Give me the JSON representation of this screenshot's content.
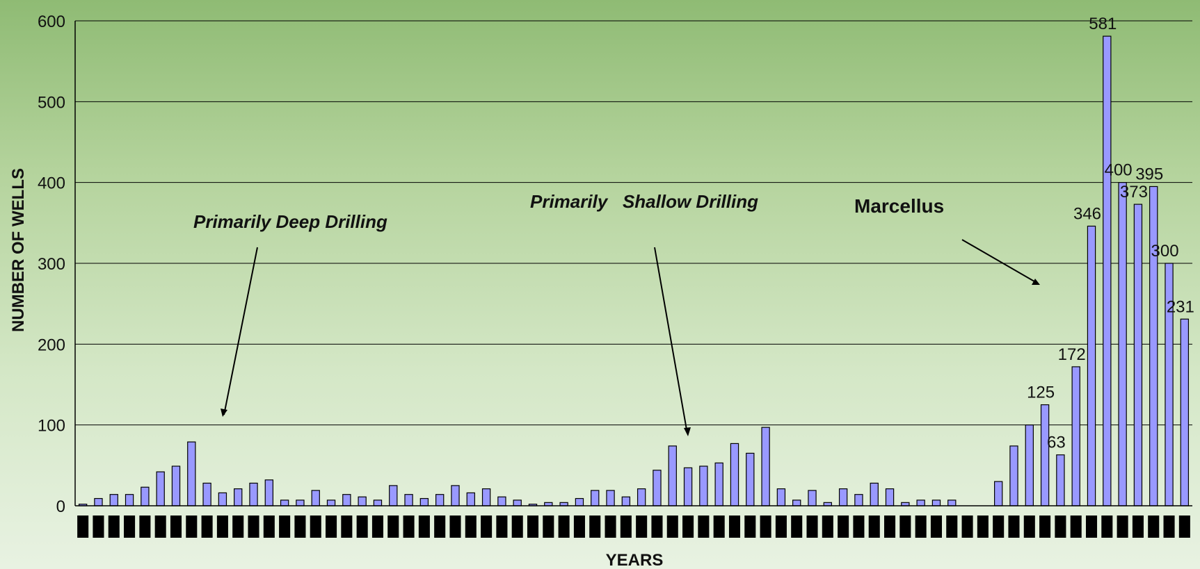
{
  "chart_data": {
    "type": "bar",
    "title": "",
    "xlabel": "YEARS",
    "ylabel": "NUMBER OF WELLS",
    "ylim": [
      0,
      600
    ],
    "yticks": [
      "0",
      "100",
      "200",
      "300",
      "400",
      "500",
      "600"
    ],
    "grid": true,
    "bar_color": "#9999ff",
    "values": [
      2,
      9,
      14,
      14,
      23,
      42,
      49,
      79,
      28,
      16,
      21,
      28,
      32,
      7,
      7,
      19,
      7,
      14,
      11,
      7,
      25,
      14,
      9,
      14,
      25,
      16,
      21,
      11,
      7,
      2,
      4,
      4,
      9,
      19,
      19,
      11,
      21,
      44,
      74,
      47,
      49,
      53,
      77,
      65,
      97,
      21,
      7,
      19,
      4,
      21,
      14,
      28,
      21,
      4,
      7,
      7,
      7,
      null,
      null,
      30,
      74,
      100,
      125,
      63,
      172,
      346,
      581,
      400,
      373,
      395,
      300,
      231
    ],
    "data_labels": [
      {
        "index": 62,
        "text": "125"
      },
      {
        "index": 63,
        "text": "63"
      },
      {
        "index": 64,
        "text": "172"
      },
      {
        "index": 65,
        "text": "346"
      },
      {
        "index": 66,
        "text": "581"
      },
      {
        "index": 67,
        "text": "400"
      },
      {
        "index": 68,
        "text": "373"
      },
      {
        "index": 69,
        "text": "395"
      },
      {
        "index": 70,
        "text": "300"
      },
      {
        "index": 71,
        "text": "231"
      }
    ],
    "annotations": [
      {
        "text": "Primarily Deep Drilling",
        "style": "bold-italic"
      },
      {
        "text": "Primarily   Shallow Drilling",
        "style": "bold-italic"
      },
      {
        "text": "Marcellus",
        "style": "bold"
      }
    ]
  }
}
